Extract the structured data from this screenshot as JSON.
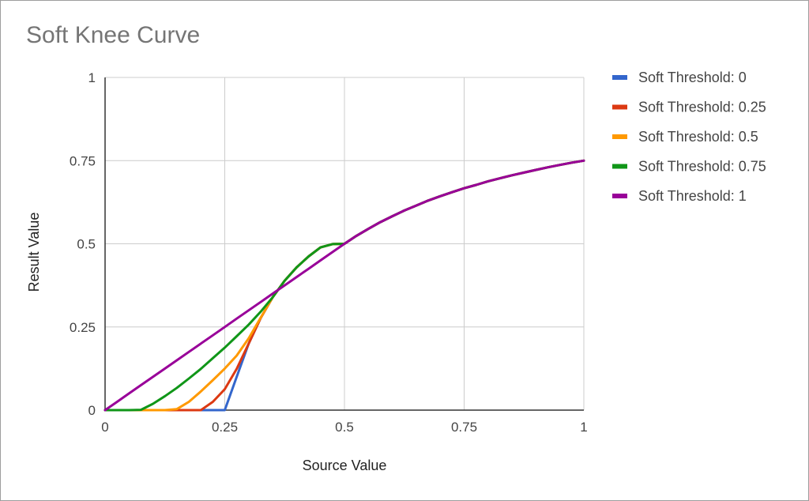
{
  "chart_data": {
    "type": "line",
    "title": "Soft Knee Curve",
    "xlabel": "Source Value",
    "ylabel": "Result Value",
    "xlim": [
      0,
      1
    ],
    "ylim": [
      0,
      1
    ],
    "x_ticks": [
      {
        "value": 0,
        "label": "0"
      },
      {
        "value": 0.25,
        "label": "0.25"
      },
      {
        "value": 0.5,
        "label": "0.5"
      },
      {
        "value": 0.75,
        "label": "0.75"
      },
      {
        "value": 1,
        "label": "1"
      }
    ],
    "y_ticks": [
      {
        "value": 0,
        "label": "0"
      },
      {
        "value": 0.25,
        "label": "0.25"
      },
      {
        "value": 0.5,
        "label": "0.5"
      },
      {
        "value": 0.75,
        "label": "0.75"
      },
      {
        "value": 1,
        "label": "1"
      }
    ],
    "grid": true,
    "legend_position": "right",
    "x": [
      0,
      0.025,
      0.05,
      0.075,
      0.1,
      0.125,
      0.15,
      0.175,
      0.2,
      0.225,
      0.25,
      0.275,
      0.3,
      0.325,
      0.35,
      0.375,
      0.4,
      0.425,
      0.45,
      0.475,
      0.5,
      0.525,
      0.55,
      0.575,
      0.6,
      0.625,
      0.65,
      0.675,
      0.7,
      0.725,
      0.75,
      0.775,
      0.8,
      0.825,
      0.85,
      0.875,
      0.9,
      0.925,
      0.95,
      0.975,
      1
    ],
    "series": [
      {
        "name": "Soft Threshold: 0",
        "color": "#3366cc",
        "values": [
          0,
          0,
          0,
          0,
          0,
          0,
          0,
          0,
          0,
          0,
          0,
          0.1,
          0.2,
          0.277,
          0.339,
          0.389,
          0.429,
          0.462,
          0.489,
          0.499,
          0.5,
          0.524,
          0.545,
          0.565,
          0.583,
          0.6,
          0.615,
          0.63,
          0.643,
          0.655,
          0.667,
          0.677,
          0.688,
          0.697,
          0.706,
          0.714,
          0.722,
          0.73,
          0.737,
          0.744,
          0.75
        ]
      },
      {
        "name": "Soft Threshold: 0.25",
        "color": "#dc3912",
        "values": [
          0,
          0,
          0,
          0,
          0,
          0,
          0,
          0,
          0,
          0.025,
          0.063,
          0.124,
          0.2,
          0.277,
          0.339,
          0.389,
          0.429,
          0.462,
          0.489,
          0.499,
          0.5,
          0.524,
          0.545,
          0.565,
          0.583,
          0.6,
          0.615,
          0.63,
          0.643,
          0.655,
          0.667,
          0.677,
          0.688,
          0.697,
          0.706,
          0.714,
          0.722,
          0.73,
          0.737,
          0.744,
          0.75
        ]
      },
      {
        "name": "Soft Threshold: 0.5",
        "color": "#ff9900",
        "values": [
          0,
          0,
          0,
          0,
          0,
          0,
          0.003,
          0.025,
          0.056,
          0.09,
          0.125,
          0.164,
          0.216,
          0.278,
          0.339,
          0.389,
          0.429,
          0.462,
          0.489,
          0.499,
          0.5,
          0.524,
          0.545,
          0.565,
          0.583,
          0.6,
          0.615,
          0.63,
          0.643,
          0.655,
          0.667,
          0.677,
          0.688,
          0.697,
          0.706,
          0.714,
          0.722,
          0.73,
          0.737,
          0.744,
          0.75
        ]
      },
      {
        "name": "Soft Threshold: 0.75",
        "color": "#109618",
        "values": [
          0,
          0,
          0,
          0.001,
          0.019,
          0.042,
          0.067,
          0.095,
          0.124,
          0.156,
          0.188,
          0.222,
          0.257,
          0.296,
          0.339,
          0.389,
          0.429,
          0.462,
          0.489,
          0.499,
          0.5,
          0.524,
          0.545,
          0.565,
          0.583,
          0.6,
          0.615,
          0.63,
          0.643,
          0.655,
          0.667,
          0.677,
          0.688,
          0.697,
          0.706,
          0.714,
          0.722,
          0.73,
          0.737,
          0.744,
          0.75
        ]
      },
      {
        "name": "Soft Threshold: 1",
        "color": "#990099",
        "values": [
          0,
          0.025,
          0.05,
          0.075,
          0.1,
          0.125,
          0.15,
          0.175,
          0.2,
          0.225,
          0.25,
          0.275,
          0.3,
          0.325,
          0.35,
          0.375,
          0.4,
          0.425,
          0.45,
          0.475,
          0.5,
          0.524,
          0.545,
          0.565,
          0.583,
          0.6,
          0.615,
          0.63,
          0.643,
          0.655,
          0.667,
          0.677,
          0.688,
          0.697,
          0.706,
          0.714,
          0.722,
          0.73,
          0.737,
          0.744,
          0.75
        ]
      }
    ]
  },
  "colors": {
    "grid": "#cccccc",
    "axis": "#333333"
  }
}
